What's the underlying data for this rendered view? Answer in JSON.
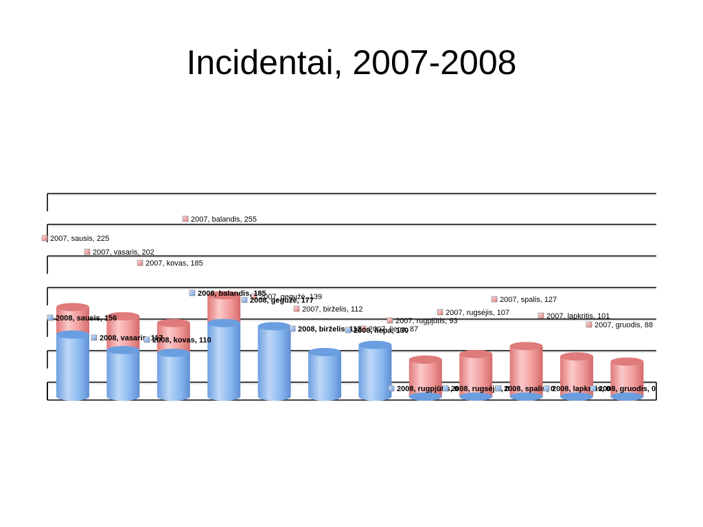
{
  "slide": {
    "title": "Incidentai, 2007-2008"
  },
  "chart_data": {
    "type": "bar",
    "variant": "stacked-3d-cylinder",
    "title": "",
    "xlabel": "",
    "ylabel": "",
    "ylim": [
      0,
      300
    ],
    "grid": true,
    "categories": [
      "sausis",
      "vasaris",
      "kovas",
      "balandis",
      "gegužė",
      "birželis",
      "liepa",
      "rugpjūtis",
      "rugsėjis",
      "spalis",
      "lapkritis",
      "gruodis"
    ],
    "series": [
      {
        "name": "2008",
        "color": "#8ab8f0",
        "top_color": "#6a9ee0",
        "bold_labels": true,
        "values": [
          156,
          117,
          110,
          185,
          177,
          112,
          130,
          0,
          0,
          0,
          0,
          0
        ],
        "labels": [
          "2008, sausis, 156",
          "2008, vasaris, 117",
          "2008, kovas, 110",
          "2008, balandis, 185",
          "2008, gegužė, 177",
          "2008, birželis, 112",
          "2008, liepa, 130",
          "2008, rugpjūtis, 0",
          "2008, rugsėjis, 0",
          "2008, spalis, 0",
          "2008, lapkritis, 0",
          "2008, gruodis, 0"
        ]
      },
      {
        "name": "2007",
        "color": "#f19a9a",
        "top_color": "#e07b7b",
        "bold_labels": false,
        "values": [
          225,
          202,
          185,
          255,
          139,
          112,
          87,
          93,
          107,
          127,
          101,
          88
        ],
        "labels": [
          "2007, sausis, 225",
          "2007, vasaris, 202",
          "2007, kovas, 185",
          "2007, balandis, 255",
          "2007, gegužė, 139",
          "2007, birželis, 112",
          "2007, liepa, 87",
          "2007, rugpjūtis, 93",
          "2007, rugsėjis, 107",
          "2007, spalis, 127",
          "2007, lapkritis, 101",
          "2007, gruodis, 88"
        ]
      }
    ]
  }
}
